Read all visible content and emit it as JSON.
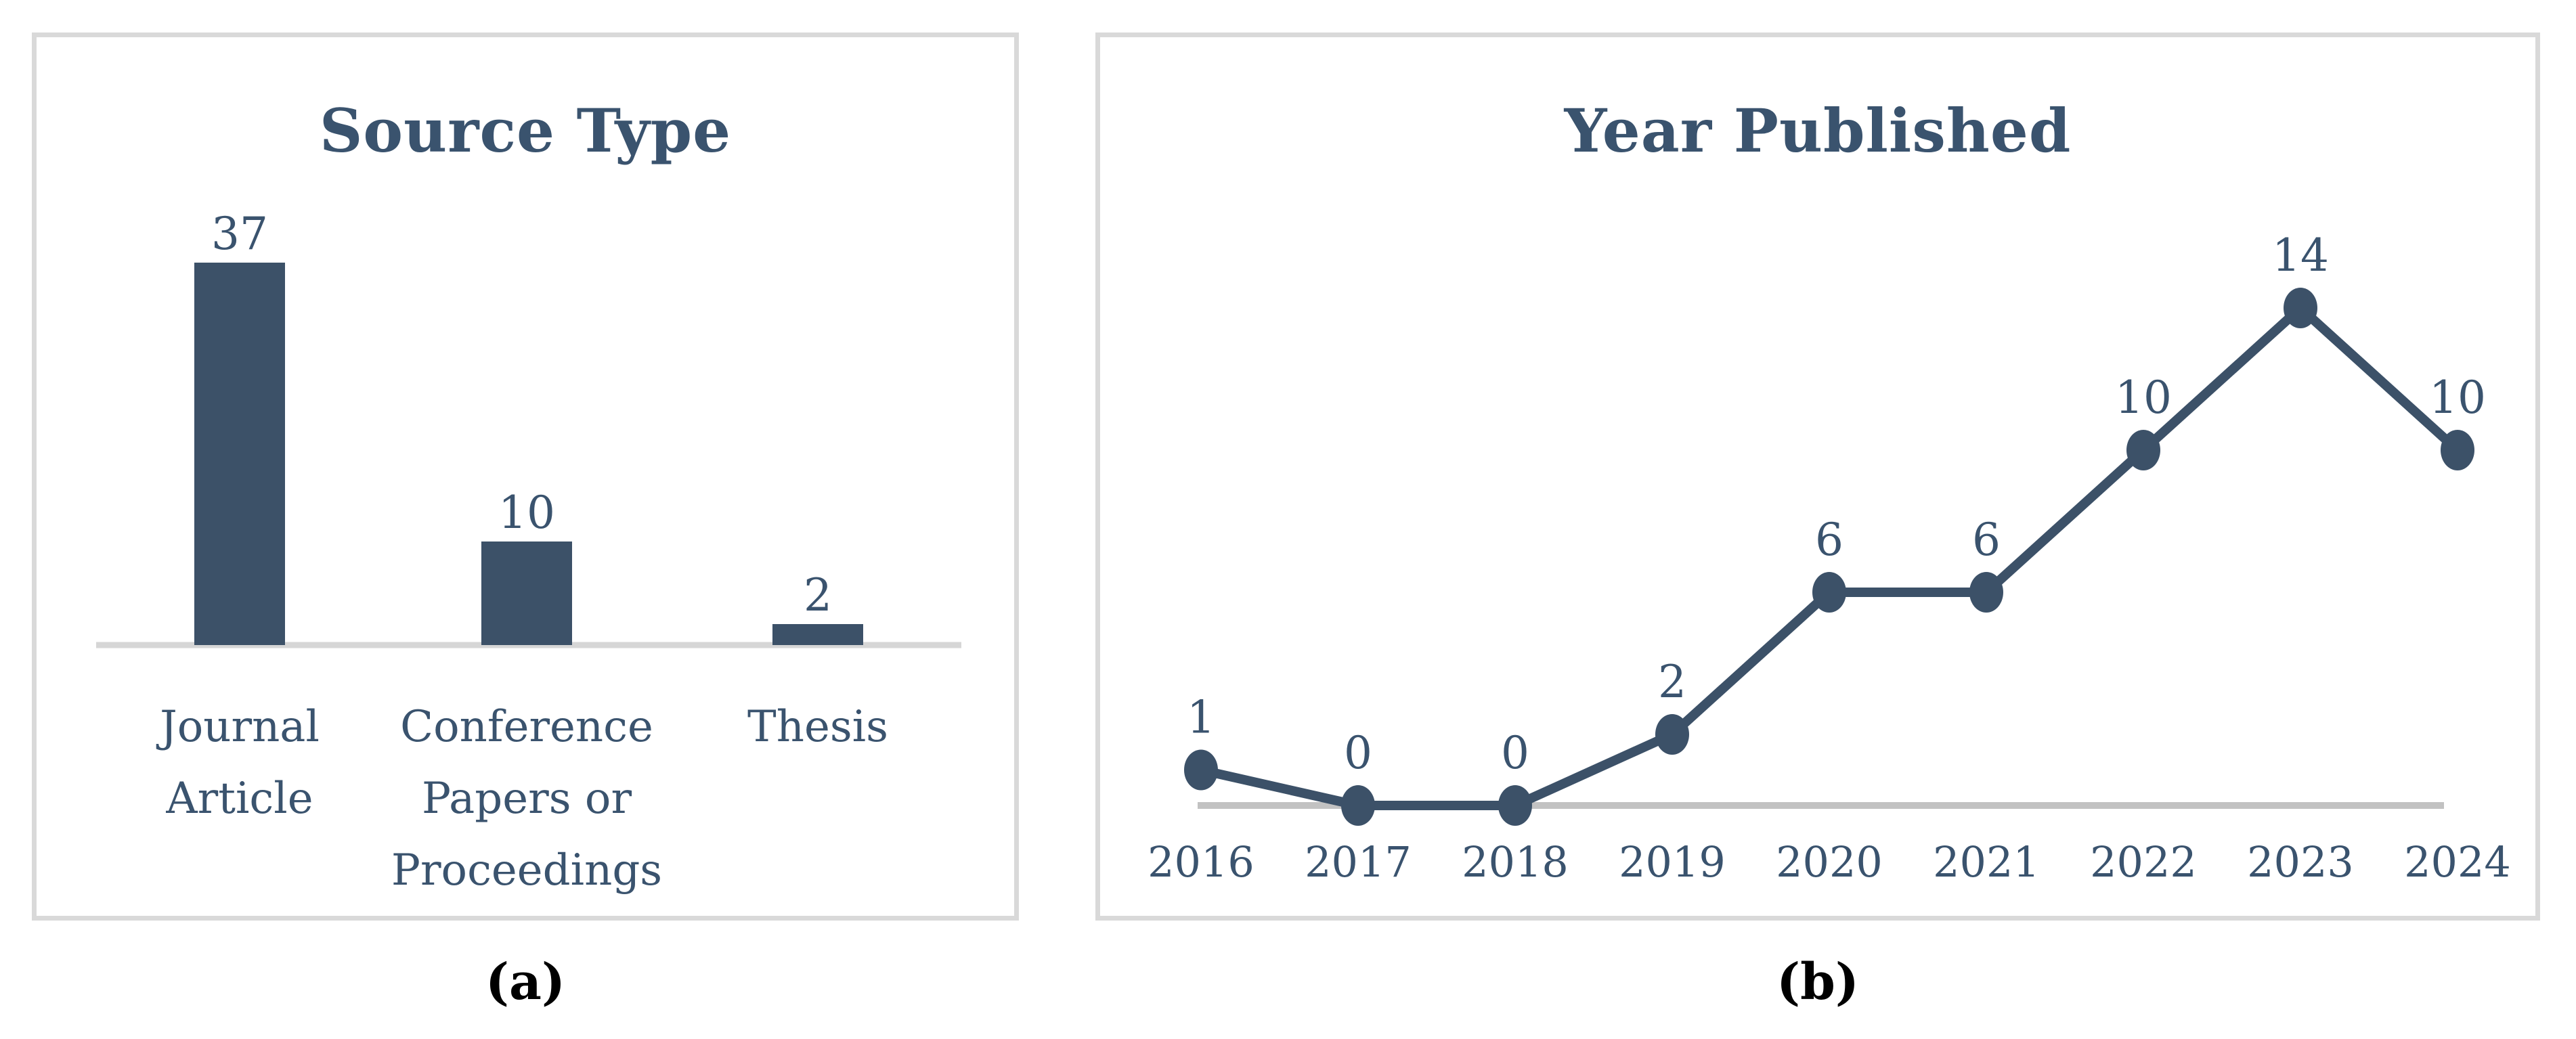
{
  "figure": {
    "captions": {
      "a": "(a)",
      "b": "(b)"
    }
  },
  "colors": {
    "series": "#3C5168",
    "label_text": "#3A536E",
    "panel_border": "#D9D9D9",
    "bar_axis_line": "#D6D6D6",
    "line_axis_line": "#C2C2C2",
    "caption_text": "#000000",
    "background": "#FFFFFF"
  },
  "chart_data": [
    {
      "type": "bar",
      "title": "Source Type",
      "categories": [
        "Journal Article",
        "Conference Papers or Proceedings",
        "Thesis"
      ],
      "category_label_lines": [
        [
          "Journal",
          "Article"
        ],
        [
          "Conference",
          "Papers or",
          "Proceedings"
        ],
        [
          "Thesis"
        ]
      ],
      "values": [
        37,
        10,
        2
      ],
      "ylim": [
        0,
        40
      ],
      "grid": false,
      "legend": "none",
      "data_labels_shown": true,
      "xlabel": "",
      "ylabel": ""
    },
    {
      "type": "line",
      "title": "Year Published",
      "x": [
        "2016",
        "2017",
        "2018",
        "2019",
        "2020",
        "2021",
        "2022",
        "2023",
        "2024"
      ],
      "values": [
        1,
        0,
        0,
        2,
        6,
        6,
        10,
        14,
        10
      ],
      "ylim": [
        0,
        15
      ],
      "grid": false,
      "legend": "none",
      "data_labels_shown": true,
      "xlabel": "",
      "ylabel": ""
    }
  ]
}
